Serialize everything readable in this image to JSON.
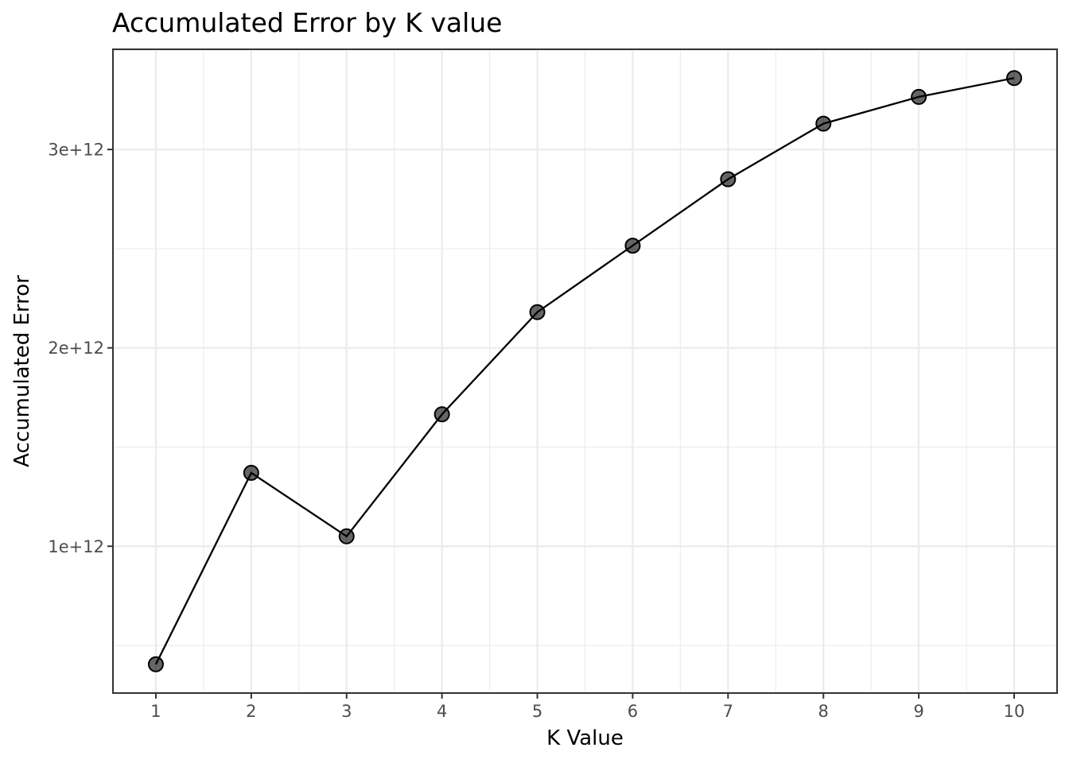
{
  "chart_data": {
    "type": "line",
    "title": "Accumulated Error by K value",
    "xlabel": "K Value",
    "ylabel": "Accumulated Error",
    "x": [
      1,
      2,
      3,
      4,
      5,
      6,
      7,
      8,
      9,
      10
    ],
    "x_ticks": [
      {
        "value": 1,
        "label": "1"
      },
      {
        "value": 2,
        "label": "2"
      },
      {
        "value": 3,
        "label": "3"
      },
      {
        "value": 4,
        "label": "4"
      },
      {
        "value": 5,
        "label": "5"
      },
      {
        "value": 6,
        "label": "6"
      },
      {
        "value": 7,
        "label": "7"
      },
      {
        "value": 8,
        "label": "8"
      },
      {
        "value": 9,
        "label": "9"
      },
      {
        "value": 10,
        "label": "10"
      }
    ],
    "y_ticks": [
      {
        "value": 1000000000000,
        "label": "1e+12"
      },
      {
        "value": 2000000000000,
        "label": "2e+12"
      },
      {
        "value": 3000000000000,
        "label": "3e+12"
      }
    ],
    "series": [
      {
        "values": [
          405000000000,
          1370000000000,
          1050000000000,
          1665000000000,
          2180000000000,
          2515000000000,
          2850000000000,
          3130000000000,
          3265000000000,
          3360000000000
        ],
        "line_color": "#000000",
        "point_color": "#000000",
        "point_opacity": 0.6
      }
    ],
    "xlim": [
      0.55,
      10.45
    ],
    "ylim": [
      260000000000,
      3505000000000
    ],
    "grid": true,
    "legend": "none",
    "theme": "bw"
  }
}
